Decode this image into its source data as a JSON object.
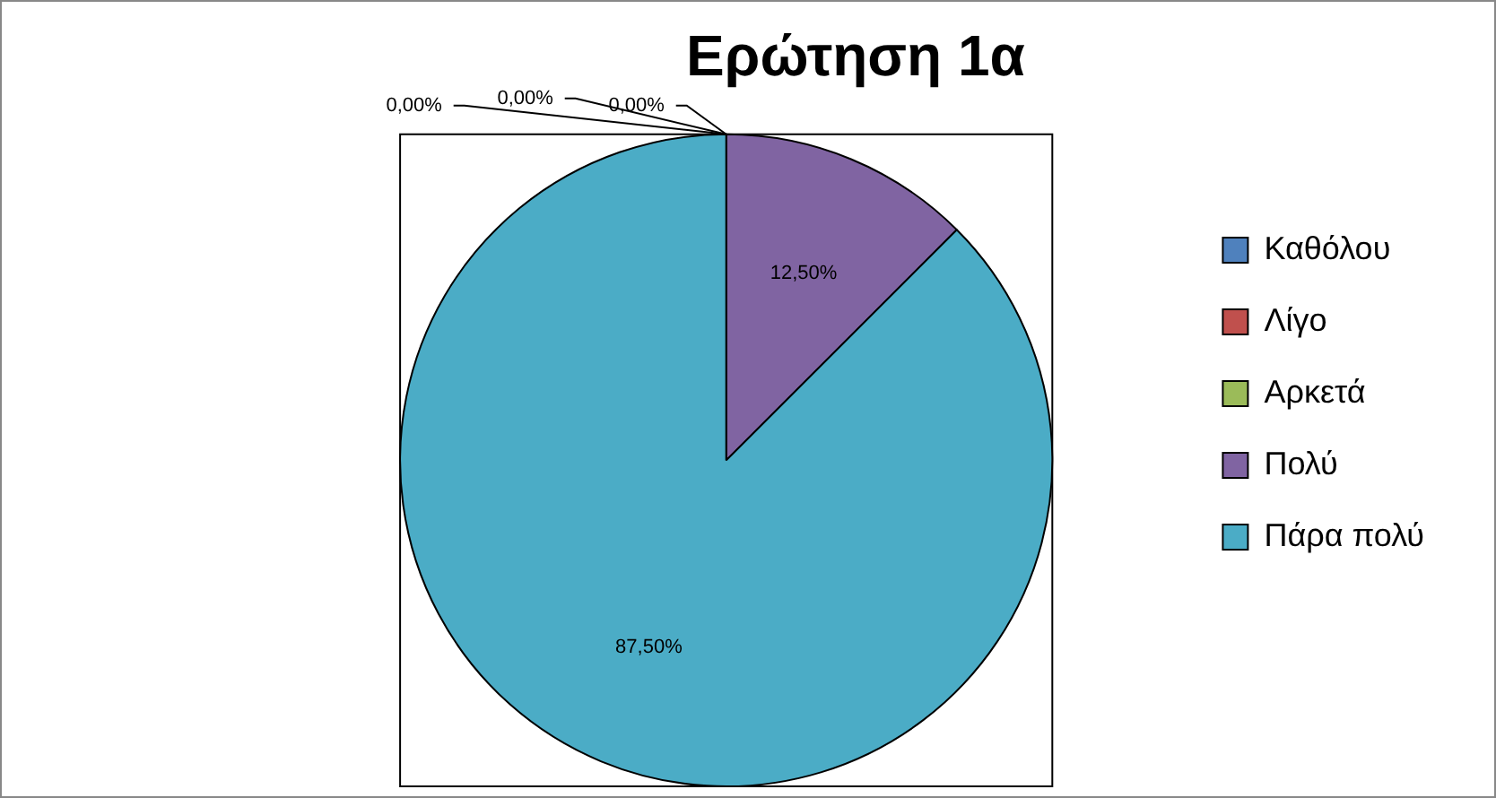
{
  "chart_data": {
    "type": "pie",
    "title": "Ερώτηση 1α",
    "categories": [
      "Καθόλου",
      "Λίγο",
      "Αρκετά",
      "Πολύ",
      "Πάρα πολύ"
    ],
    "values": [
      0,
      0,
      0,
      12.5,
      87.5
    ],
    "colors": [
      "#4f81bd",
      "#c0504d",
      "#9bbb59",
      "#8064a2",
      "#4bacc6"
    ],
    "value_labels": [
      "0,00%",
      "0,00%",
      "0,00%",
      "12,50%",
      "87,50%"
    ],
    "legend": "right"
  }
}
